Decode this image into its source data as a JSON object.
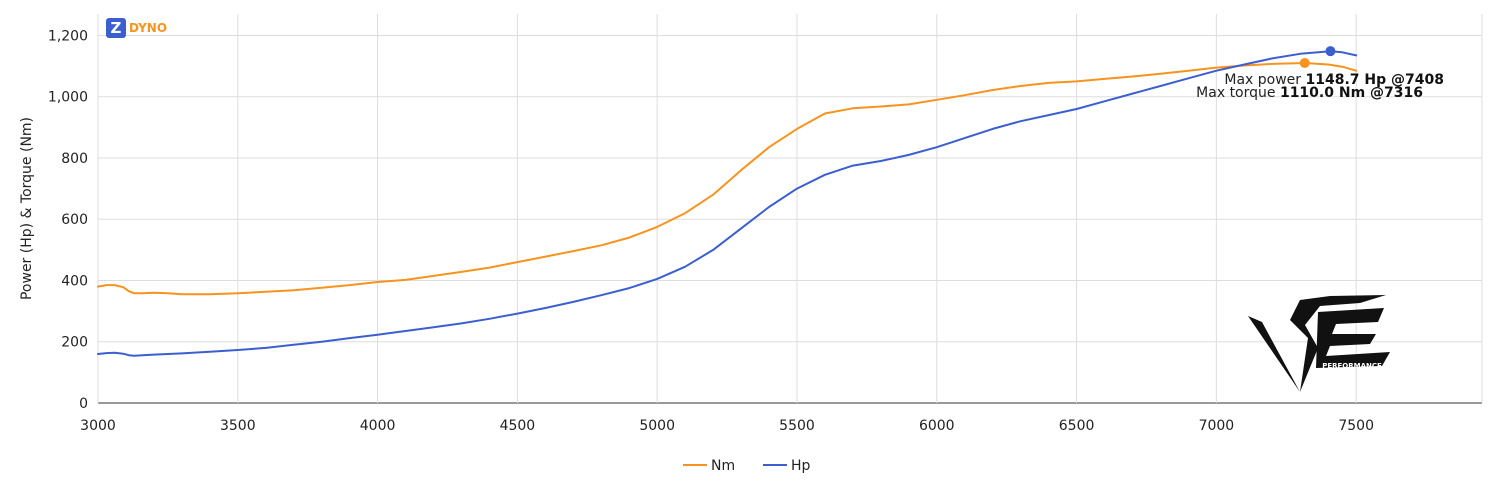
{
  "brand": {
    "letter": "Z",
    "name": "DYNO",
    "color": "#F7931E",
    "badge_color": "#3B5FD0"
  },
  "watermark": {
    "label": "PERFORMANCE"
  },
  "annotations": {
    "power_prefix": "Max power ",
    "power_value": "1148.7 Hp @7408",
    "torque_prefix": "Max torque ",
    "torque_value": "1110.0 Nm @7316"
  },
  "chart_data": {
    "type": "line",
    "title": "",
    "xlabel": "",
    "ylabel": "Power (Hp) & Torque (Nm)",
    "xlim": [
      3000,
      7950
    ],
    "ylim": [
      0,
      1270
    ],
    "xticks": [
      3000,
      3500,
      4000,
      4500,
      5000,
      5500,
      6000,
      6500,
      7000,
      7500
    ],
    "yticks": [
      0,
      200,
      400,
      600,
      800,
      1000,
      1200
    ],
    "ytick_labels": [
      "0",
      "200",
      "400",
      "600",
      "800",
      "1,000",
      "1,200"
    ],
    "grid": true,
    "legend_position": "bottom-center",
    "series": [
      {
        "name": "Nm",
        "color": "#F7931E",
        "x": [
          3000,
          3030,
          3060,
          3090,
          3110,
          3130,
          3160,
          3200,
          3250,
          3300,
          3400,
          3500,
          3600,
          3700,
          3800,
          3900,
          4000,
          4100,
          4200,
          4300,
          4400,
          4500,
          4600,
          4700,
          4800,
          4900,
          5000,
          5100,
          5200,
          5300,
          5400,
          5500,
          5600,
          5700,
          5800,
          5900,
          6000,
          6100,
          6200,
          6300,
          6400,
          6500,
          6600,
          6700,
          6800,
          6900,
          7000,
          7100,
          7200,
          7316,
          7400,
          7450,
          7500
        ],
        "y": [
          380,
          385,
          385,
          378,
          365,
          358,
          358,
          360,
          358,
          355,
          355,
          358,
          363,
          368,
          376,
          385,
          395,
          402,
          415,
          428,
          442,
          460,
          478,
          496,
          515,
          540,
          575,
          620,
          680,
          760,
          835,
          895,
          945,
          962,
          968,
          975,
          990,
          1005,
          1022,
          1035,
          1045,
          1050,
          1058,
          1066,
          1075,
          1085,
          1095,
          1102,
          1107,
          1110,
          1105,
          1098,
          1085
        ]
      },
      {
        "name": "Hp",
        "color": "#3B5FD0",
        "x": [
          3000,
          3030,
          3060,
          3090,
          3110,
          3130,
          3160,
          3200,
          3250,
          3300,
          3400,
          3500,
          3600,
          3700,
          3800,
          3900,
          4000,
          4100,
          4200,
          4300,
          4400,
          4500,
          4600,
          4700,
          4800,
          4900,
          5000,
          5100,
          5200,
          5300,
          5400,
          5500,
          5600,
          5700,
          5800,
          5900,
          6000,
          6100,
          6200,
          6300,
          6400,
          6500,
          6600,
          6700,
          6800,
          6900,
          7000,
          7100,
          7200,
          7300,
          7408,
          7450,
          7500
        ],
        "y": [
          160,
          163,
          164,
          161,
          156,
          154,
          156,
          158,
          160,
          162,
          167,
          173,
          180,
          190,
          200,
          212,
          223,
          235,
          247,
          260,
          275,
          292,
          310,
          330,
          352,
          375,
          405,
          445,
          500,
          570,
          640,
          700,
          745,
          775,
          790,
          810,
          835,
          865,
          895,
          920,
          940,
          960,
          985,
          1010,
          1035,
          1060,
          1085,
          1105,
          1125,
          1140,
          1148.7,
          1145,
          1135
        ]
      }
    ],
    "markers": [
      {
        "series": "Hp",
        "x": 7408,
        "y": 1148.7
      },
      {
        "series": "Nm",
        "x": 7316,
        "y": 1110.0
      }
    ]
  }
}
